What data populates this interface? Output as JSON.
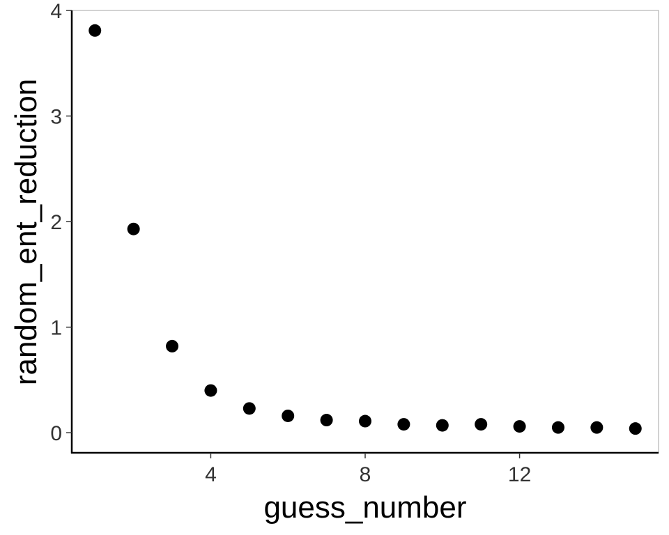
{
  "chart_data": {
    "type": "scatter",
    "title": "",
    "xlabel": "guess_number",
    "ylabel": "random_ent_reduction",
    "xlim": [
      0.4,
      15.6
    ],
    "ylim": [
      -0.19,
      4.0
    ],
    "x_ticks": [
      4,
      8,
      12
    ],
    "y_ticks": [
      0,
      1,
      2,
      3,
      4
    ],
    "grid": false,
    "legend": "none",
    "point_color": "#000000",
    "points": [
      {
        "x": 1,
        "y": 3.81
      },
      {
        "x": 2,
        "y": 1.93
      },
      {
        "x": 3,
        "y": 0.82
      },
      {
        "x": 4,
        "y": 0.4
      },
      {
        "x": 5,
        "y": 0.23
      },
      {
        "x": 6,
        "y": 0.16
      },
      {
        "x": 7,
        "y": 0.12
      },
      {
        "x": 8,
        "y": 0.11
      },
      {
        "x": 9,
        "y": 0.08
      },
      {
        "x": 10,
        "y": 0.07
      },
      {
        "x": 11,
        "y": 0.08
      },
      {
        "x": 12,
        "y": 0.06
      },
      {
        "x": 13,
        "y": 0.05
      },
      {
        "x": 14,
        "y": 0.05
      },
      {
        "x": 15,
        "y": 0.04
      }
    ]
  }
}
